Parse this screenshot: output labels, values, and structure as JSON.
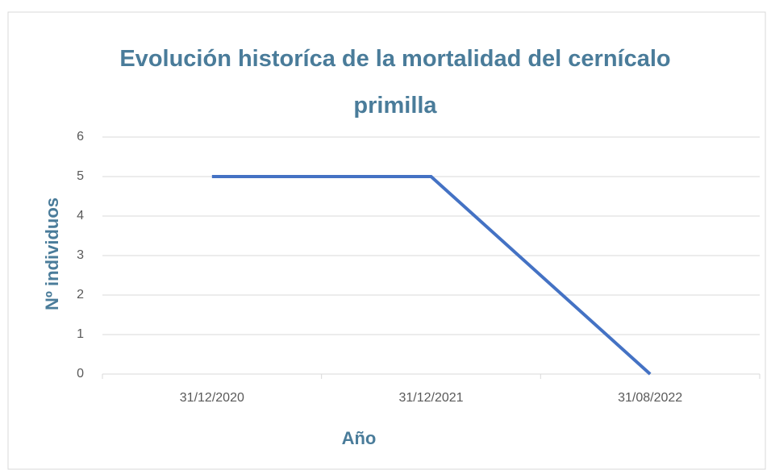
{
  "chart_data": {
    "type": "line",
    "title": "Evolución historíca de la mortalidad del cernícalo primilla",
    "x_label": "Año",
    "y_label": "Nº individuos",
    "categories": [
      "31/12/2020",
      "31/12/2021",
      "31/08/2022"
    ],
    "values": [
      5,
      5,
      0
    ],
    "color": "#4472c4",
    "ylim": [
      0,
      6
    ],
    "yticks": [
      0,
      1,
      2,
      3,
      4,
      5,
      6
    ],
    "grid": true
  }
}
